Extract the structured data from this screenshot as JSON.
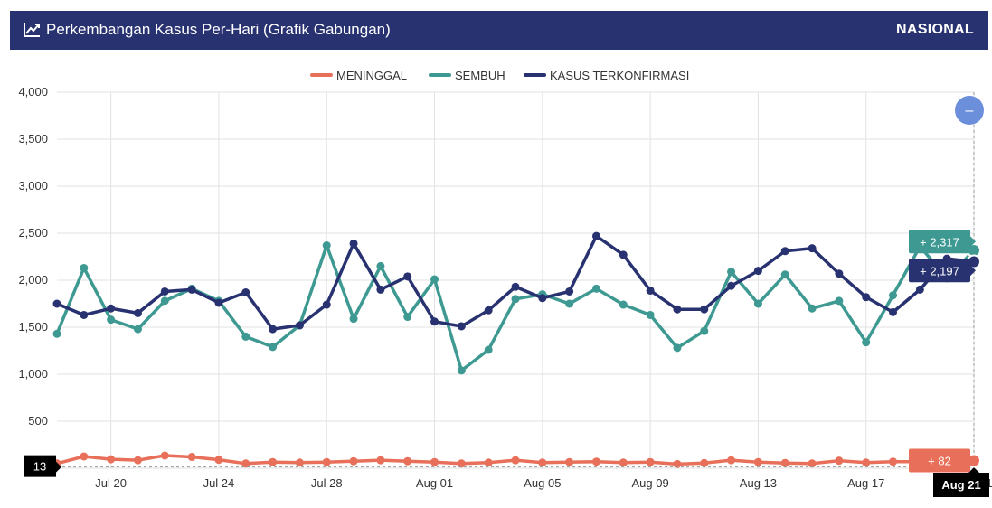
{
  "header": {
    "title": "Perkembangan Kasus Per-Hari (Grafik Gabungan)",
    "scope": "NASIONAL",
    "icon": "line-chart-icon"
  },
  "zoom_button": {
    "label": "–",
    "color": "#6c8fdc"
  },
  "chart_data": {
    "type": "line",
    "x": [
      "Jul 18",
      "Jul 19",
      "Jul 20",
      "Jul 21",
      "Jul 22",
      "Jul 23",
      "Jul 24",
      "Jul 25",
      "Jul 26",
      "Jul 27",
      "Jul 28",
      "Jul 29",
      "Jul 30",
      "Jul 31",
      "Aug 01",
      "Aug 02",
      "Aug 03",
      "Aug 04",
      "Aug 05",
      "Aug 06",
      "Aug 07",
      "Aug 08",
      "Aug 09",
      "Aug 10",
      "Aug 11",
      "Aug 12",
      "Aug 13",
      "Aug 14",
      "Aug 15",
      "Aug 16",
      "Aug 17",
      "Aug 18",
      "Aug 19",
      "Aug 20",
      "Aug 21"
    ],
    "xticks": [
      "Jul 20",
      "Jul 24",
      "Jul 28",
      "Aug 01",
      "Aug 05",
      "Aug 09",
      "Aug 13",
      "Aug 17",
      "Aug 21"
    ],
    "ylim": [
      0,
      4000
    ],
    "yticks": [
      "0",
      "500",
      "1,000",
      "1,500",
      "2,000",
      "2,500",
      "3,000",
      "3,500",
      "4,000"
    ],
    "grid": true,
    "legend_position": "top-center",
    "series": [
      {
        "name": "MENINGGAL",
        "color": "#e8705a",
        "values": [
          50,
          125,
          95,
          85,
          135,
          120,
          90,
          50,
          65,
          60,
          65,
          75,
          85,
          75,
          65,
          50,
          60,
          85,
          60,
          65,
          70,
          60,
          65,
          45,
          55,
          85,
          65,
          55,
          50,
          80,
          60,
          70,
          70,
          75,
          82
        ]
      },
      {
        "name": "SEMBUH",
        "color": "#3d9991",
        "values": [
          1430,
          2130,
          1580,
          1480,
          1780,
          1910,
          1780,
          1400,
          1290,
          1520,
          2370,
          1590,
          2150,
          1610,
          2010,
          1040,
          1260,
          1800,
          1850,
          1750,
          1910,
          1740,
          1630,
          1280,
          1460,
          2090,
          1750,
          2060,
          1700,
          1780,
          1340,
          1840,
          2360,
          2020,
          2317
        ]
      },
      {
        "name": "KASUS TERKONFIRMASI",
        "color": "#283270",
        "values": [
          1750,
          1630,
          1700,
          1650,
          1880,
          1900,
          1760,
          1870,
          1480,
          1520,
          1740,
          2390,
          1900,
          2040,
          1560,
          1510,
          1680,
          1930,
          1810,
          1880,
          2470,
          2270,
          1890,
          1690,
          1690,
          1940,
          2100,
          2310,
          2340,
          2070,
          1820,
          1660,
          1900,
          2230,
          2197
        ]
      }
    ],
    "annotations": {
      "crosshair_x": "Aug 21",
      "crosshair_y": "13",
      "labels": [
        {
          "series": "SEMBUH",
          "text": "+ 2,317",
          "color": "#3d9991"
        },
        {
          "series": "KASUS TERKONFIRMASI",
          "text": "+ 2,197",
          "color": "#283270"
        },
        {
          "series": "MENINGGAL",
          "text": "+ 82",
          "color": "#e8705a"
        }
      ]
    }
  }
}
